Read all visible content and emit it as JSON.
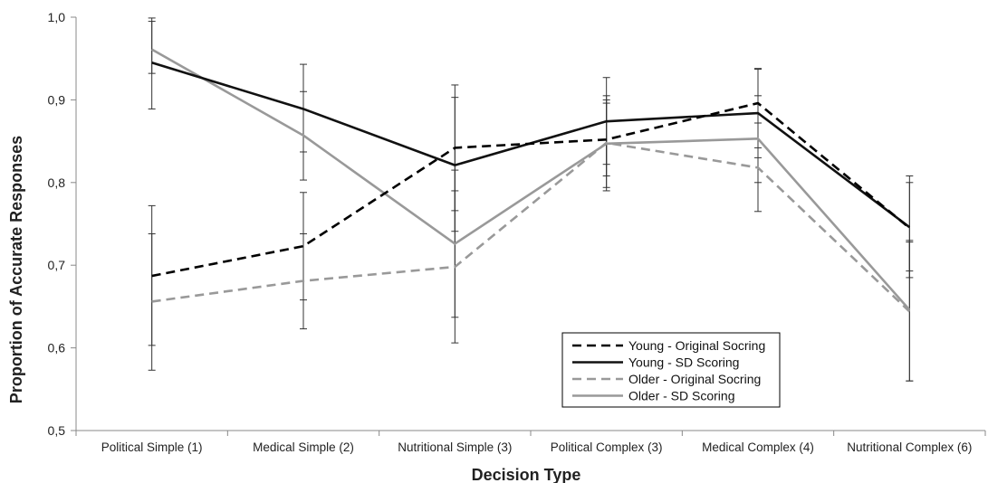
{
  "chart_data": {
    "type": "line",
    "title": "",
    "xlabel": "Decision Type",
    "ylabel": "Proportion of Accurate Responses",
    "ylim": [
      0.5,
      1.0
    ],
    "ytick_values": [
      0.5,
      0.6,
      0.7,
      0.8,
      0.9,
      1.0
    ],
    "ytick_labels": [
      "0,5",
      "0,6",
      "0,7",
      "0,8",
      "0,9",
      "1,0"
    ],
    "categories": [
      "Political Simple (1)",
      "Medical Simple (2)",
      "Nutritional Simple (3)",
      "Political Complex (3)",
      "Medical Complex (4)",
      "Nutritional Complex (6)"
    ],
    "grid": false,
    "legend_position": "bottom-right",
    "series": [
      {
        "name": "Young - Original Socring",
        "color": "#000000",
        "dash": "dashed",
        "values": [
          0.687,
          0.723,
          0.842,
          0.852,
          0.896,
          0.745
        ],
        "error_low": [
          0.603,
          0.658,
          0.766,
          0.808,
          0.842,
          0.685
        ],
        "error_high": [
          0.772,
          0.788,
          0.918,
          0.896,
          0.938,
          0.808
        ]
      },
      {
        "name": "Young - SD Scoring",
        "color": "#111111",
        "dash": "solid",
        "values": [
          0.945,
          0.889,
          0.821,
          0.874,
          0.884,
          0.746
        ],
        "error_low": [
          0.889,
          0.837,
          0.741,
          0.822,
          0.83,
          0.693
        ],
        "error_high": [
          0.999,
          0.943,
          0.903,
          0.927,
          0.937,
          0.8
        ]
      },
      {
        "name": "Older - Original Socring",
        "color": "#999999",
        "dash": "dashed",
        "values": [
          0.656,
          0.681,
          0.698,
          0.848,
          0.818,
          0.644
        ],
        "error_low": [
          0.573,
          0.623,
          0.606,
          0.79,
          0.765,
          0.56
        ],
        "error_high": [
          0.738,
          0.738,
          0.79,
          0.905,
          0.872,
          0.728
        ]
      },
      {
        "name": "Older - SD Scoring",
        "color": "#999999",
        "dash": "solid",
        "values": [
          0.961,
          0.857,
          0.726,
          0.847,
          0.853,
          0.646
        ],
        "error_low": [
          0.932,
          0.803,
          0.637,
          0.794,
          0.8,
          0.56
        ],
        "error_high": [
          0.995,
          0.91,
          0.815,
          0.9,
          0.905,
          0.73
        ]
      }
    ]
  }
}
